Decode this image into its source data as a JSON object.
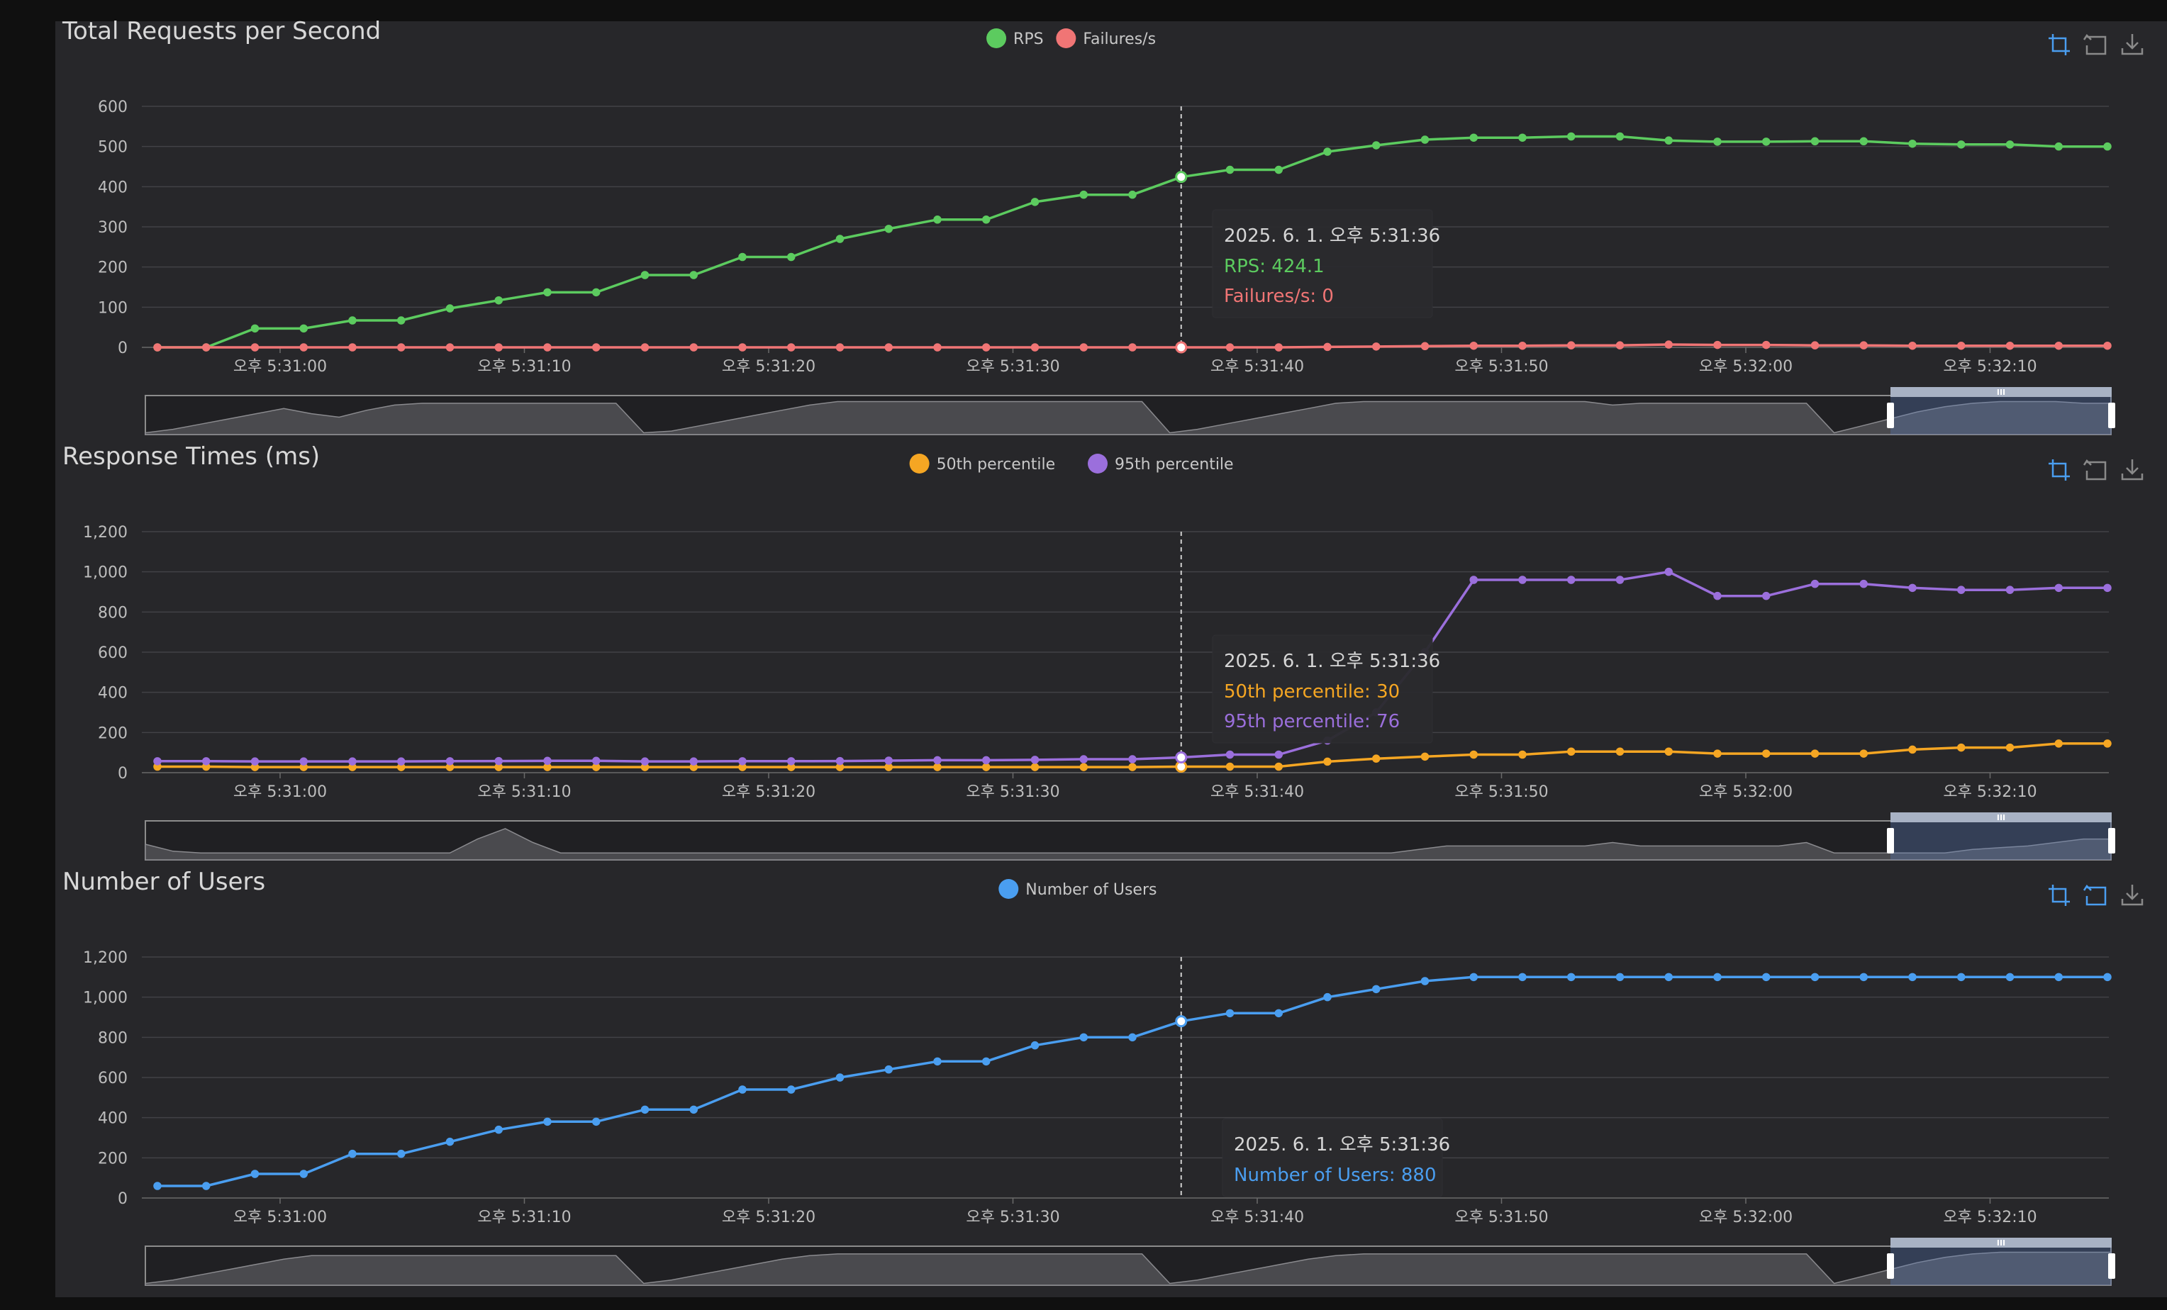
{
  "chart_data": [
    {
      "type": "line",
      "title": "Total Requests per Second",
      "legend_placement": "top-center",
      "grid": true,
      "ylim": [
        0,
        600
      ],
      "y_ticks": [
        "0",
        "100",
        "200",
        "300",
        "400",
        "500",
        "600"
      ],
      "x_ticks": [
        "오후 5:31:00",
        "오후 5:31:10",
        "오후 5:31:20",
        "오후 5:31:30",
        "오후 5:31:40",
        "오후 5:31:50",
        "오후 5:32:00",
        "오후 5:32:10"
      ],
      "series": [
        {
          "name": "RPS",
          "color": "#5ccb5f",
          "values": [
            0,
            0,
            47,
            47,
            67,
            67,
            97,
            117,
            137,
            137,
            180,
            180,
            225,
            225,
            270,
            295,
            318,
            318,
            362,
            380,
            380,
            424.1,
            442,
            442,
            487,
            503,
            517,
            522,
            522,
            525,
            525,
            515,
            512,
            512,
            513,
            513,
            507,
            505,
            505,
            500,
            500
          ]
        },
        {
          "name": "Failures/s",
          "color": "#f07575",
          "values": [
            0,
            0,
            0,
            0,
            0,
            0,
            0,
            0,
            0,
            0,
            0,
            0,
            0,
            0,
            0,
            0,
            0,
            0,
            0,
            0,
            0,
            0,
            0,
            0,
            1,
            2,
            3,
            4,
            4,
            5,
            5,
            7,
            6,
            6,
            5,
            5,
            4,
            4,
            4,
            4,
            4
          ]
        }
      ],
      "tooltip": {
        "title": "2025. 6. 1. 오후 5:31:36",
        "lines": [
          "RPS: 424.1",
          "Failures/s: 0"
        ],
        "index": 21
      }
    },
    {
      "type": "line",
      "title": "Response Times (ms)",
      "legend_placement": "top-center",
      "grid": true,
      "ylim": [
        0,
        1200
      ],
      "y_ticks": [
        "0",
        "200",
        "400",
        "600",
        "800",
        "1,000",
        "1,200"
      ],
      "x_ticks": [
        "오후 5:31:00",
        "오후 5:31:10",
        "오후 5:31:20",
        "오후 5:31:30",
        "오후 5:31:40",
        "오후 5:31:50",
        "오후 5:32:00",
        "오후 5:32:10"
      ],
      "series": [
        {
          "name": "50th percentile",
          "color": "#f5a623",
          "values": [
            30,
            30,
            28,
            28,
            28,
            28,
            28,
            28,
            28,
            28,
            28,
            28,
            28,
            28,
            28,
            28,
            28,
            28,
            28,
            28,
            28,
            30,
            30,
            30,
            55,
            70,
            80,
            90,
            90,
            105,
            105,
            105,
            95,
            95,
            95,
            95,
            115,
            125,
            125,
            145,
            145
          ]
        },
        {
          "name": "95th percentile",
          "color": "#9b6fdc",
          "values": [
            57,
            57,
            56,
            56,
            56,
            56,
            57,
            58,
            59,
            59,
            56,
            56,
            57,
            57,
            58,
            60,
            62,
            62,
            64,
            67,
            67,
            76,
            90,
            90,
            160,
            300,
            600,
            960,
            960,
            960,
            960,
            1000,
            880,
            880,
            940,
            940,
            920,
            910,
            910,
            920,
            920
          ]
        }
      ],
      "tooltip": {
        "title": "2025. 6. 1. 오후 5:31:36",
        "lines": [
          "50th percentile: 30",
          "95th percentile: 76"
        ],
        "index": 21
      }
    },
    {
      "type": "line",
      "title": "Number of Users",
      "legend_placement": "top-center",
      "grid": true,
      "ylim": [
        0,
        1200
      ],
      "y_ticks": [
        "0",
        "200",
        "400",
        "600",
        "800",
        "1,000",
        "1,200"
      ],
      "x_ticks": [
        "오후 5:31:00",
        "오후 5:31:10",
        "오후 5:31:20",
        "오후 5:31:30",
        "오후 5:31:40",
        "오후 5:31:50",
        "오후 5:32:00",
        "오후 5:32:10"
      ],
      "series": [
        {
          "name": "Number of Users",
          "color": "#4a9ef0",
          "values": [
            60,
            60,
            120,
            120,
            220,
            220,
            280,
            340,
            380,
            380,
            440,
            440,
            540,
            540,
            600,
            640,
            680,
            680,
            760,
            800,
            800,
            880,
            920,
            920,
            1000,
            1040,
            1080,
            1100,
            1100,
            1100,
            1100,
            1100,
            1100,
            1100,
            1100,
            1100,
            1100,
            1100,
            1100,
            1100,
            1100
          ]
        }
      ],
      "tooltip": {
        "title": "2025. 6. 1. 오후 5:31:36",
        "lines": [
          "Number of Users: 880"
        ],
        "index": 21
      }
    }
  ],
  "toolbar": {
    "icons": [
      "zoom-select-icon",
      "zoom-reset-icon",
      "download-icon"
    ],
    "color_active": "#4a9ef0",
    "color_inactive": "#8a8a8a"
  },
  "zoom_slider": {
    "handle_label": "III",
    "overview": [
      [
        0.05,
        0.15,
        0.3,
        0.45,
        0.6,
        0.75,
        0.6,
        0.5,
        0.7,
        0.85,
        0.9,
        0.9,
        0.9,
        0.9,
        0.9,
        0.9,
        0.9,
        0.9,
        0.05,
        0.1,
        0.25,
        0.4,
        0.55,
        0.7,
        0.85,
        0.95,
        0.95,
        0.95,
        0.95,
        0.95,
        0.95,
        0.95,
        0.95,
        0.95,
        0.95,
        0.95,
        0.95,
        0.05,
        0.15,
        0.3,
        0.45,
        0.6,
        0.75,
        0.9,
        0.95,
        0.95,
        0.95,
        0.95,
        0.95,
        0.95,
        0.95,
        0.95,
        0.95,
        0.85,
        0.9,
        0.9,
        0.9,
        0.9,
        0.9,
        0.9,
        0.9,
        0.05,
        0.25,
        0.45,
        0.65,
        0.8,
        0.9,
        0.95,
        0.95,
        0.95,
        0.9,
        0.9
      ],
      [
        0.45,
        0.25,
        0.2,
        0.2,
        0.2,
        0.2,
        0.2,
        0.2,
        0.2,
        0.2,
        0.2,
        0.2,
        0.6,
        0.9,
        0.5,
        0.2,
        0.2,
        0.2,
        0.2,
        0.2,
        0.2,
        0.2,
        0.2,
        0.2,
        0.2,
        0.2,
        0.2,
        0.2,
        0.2,
        0.2,
        0.2,
        0.2,
        0.2,
        0.2,
        0.2,
        0.2,
        0.2,
        0.2,
        0.2,
        0.2,
        0.2,
        0.2,
        0.2,
        0.2,
        0.2,
        0.2,
        0.3,
        0.4,
        0.4,
        0.4,
        0.4,
        0.4,
        0.4,
        0.5,
        0.4,
        0.4,
        0.4,
        0.4,
        0.4,
        0.4,
        0.5,
        0.2,
        0.2,
        0.2,
        0.2,
        0.2,
        0.3,
        0.35,
        0.4,
        0.5,
        0.6,
        0.6
      ],
      [
        0.05,
        0.15,
        0.3,
        0.45,
        0.6,
        0.75,
        0.85,
        0.85,
        0.85,
        0.85,
        0.85,
        0.85,
        0.85,
        0.85,
        0.85,
        0.85,
        0.85,
        0.85,
        0.05,
        0.15,
        0.3,
        0.45,
        0.6,
        0.75,
        0.85,
        0.9,
        0.9,
        0.9,
        0.9,
        0.9,
        0.9,
        0.9,
        0.9,
        0.9,
        0.9,
        0.9,
        0.9,
        0.05,
        0.15,
        0.3,
        0.45,
        0.6,
        0.75,
        0.85,
        0.9,
        0.9,
        0.9,
        0.9,
        0.9,
        0.9,
        0.9,
        0.9,
        0.9,
        0.9,
        0.9,
        0.9,
        0.9,
        0.9,
        0.9,
        0.9,
        0.9,
        0.05,
        0.25,
        0.45,
        0.65,
        0.8,
        0.9,
        0.95,
        0.95,
        0.95,
        0.95,
        0.95
      ]
    ]
  }
}
